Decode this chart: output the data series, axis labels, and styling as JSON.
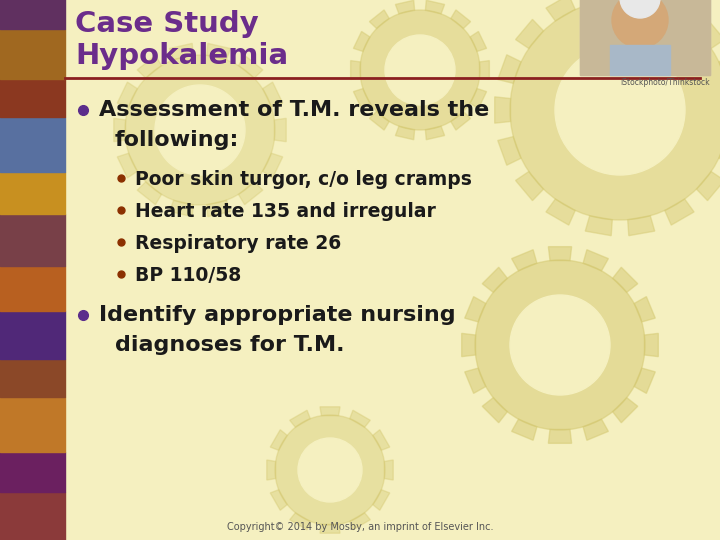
{
  "title_line1": "Case Study",
  "title_line2": "Hypokalemia",
  "title_color": "#6B2D8B",
  "bg_color": "#F5F0C0",
  "bullet_color": "#5B2D8B",
  "sub_bullet_color": "#8B3000",
  "main_bullet1_line1": "Assessment of T.M. reveals the",
  "main_bullet1_line2": "following:",
  "sub_bullets": [
    "Poor skin turgor, c/o leg cramps",
    "Heart rate 135 and irregular",
    "Respiratory rate 26",
    "BP 110/58"
  ],
  "main_bullet2_line1": "Identify appropriate nursing",
  "main_bullet2_line2": "diagnoses for T.M.",
  "copyright": "Copyright© 2014 by Mosby, an imprint of Elsevier Inc.",
  "photo_credit": "iStockphoto/Thinkstock",
  "body_text_color": "#1A1A1A",
  "divider_color": "#8B2020",
  "gear_color": "#D4C870",
  "left_strip_colors": [
    "#8B3A3A",
    "#6B2060",
    "#C07828",
    "#8B4828",
    "#502878",
    "#B86020",
    "#784048",
    "#C89020",
    "#5870A0",
    "#8B3820",
    "#A06820",
    "#603060"
  ],
  "left_strip_heights": [
    48,
    40,
    55,
    38,
    48,
    45,
    52,
    42,
    55,
    38,
    50,
    89
  ]
}
